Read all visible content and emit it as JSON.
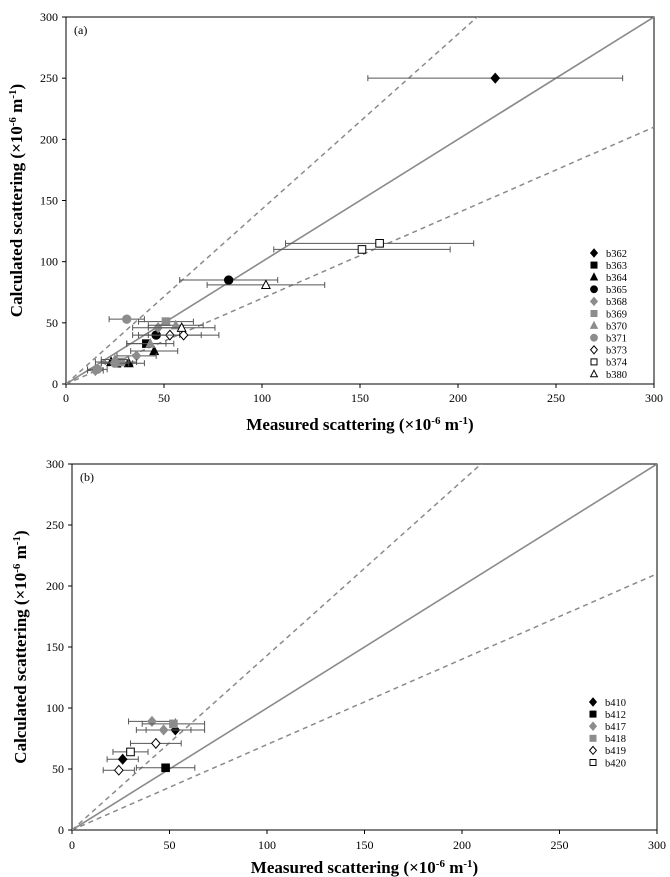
{
  "chart_data": [
    {
      "type": "scatter",
      "panel_label": "(a)",
      "xlabel": "Measured scattering (×10",
      "ylabel": "Calculated scattering (×10",
      "unit_exp": "-6",
      "unit_tail": " m",
      "unit_exp2": "-1",
      "unit_close": ")",
      "xlim": [
        0,
        300
      ],
      "ylim": [
        0,
        300
      ],
      "xticks": [
        "0",
        "50",
        "100",
        "150",
        "200",
        "250",
        "300"
      ],
      "yticks": [
        "0",
        "50",
        "100",
        "150",
        "200",
        "250",
        "300"
      ],
      "grid": false,
      "legend_position": "right",
      "reference_lines": [
        {
          "style": "solid",
          "slope": 1
        },
        {
          "style": "dashed",
          "slope": 1.43
        },
        {
          "style": "dashed",
          "slope": 0.7
        }
      ],
      "series": [
        {
          "name": "b362",
          "marker": "diamond",
          "fill": "#000000",
          "stroke": "#000000",
          "points": [
            {
              "x": 219,
              "y": 250,
              "xerr": 65
            }
          ]
        },
        {
          "name": "b363",
          "marker": "square",
          "fill": "#000000",
          "stroke": "#000000",
          "points": [
            {
              "x": 41,
              "y": 33,
              "xerr": 10
            },
            {
              "x": 26,
              "y": 17,
              "xerr": 8
            }
          ]
        },
        {
          "name": "b364",
          "marker": "triangle",
          "fill": "#000000",
          "stroke": "#000000",
          "points": [
            {
              "x": 45,
              "y": 27,
              "xerr": 12
            },
            {
              "x": 23,
              "y": 18,
              "xerr": 8
            },
            {
              "x": 32,
              "y": 17,
              "xerr": 8
            }
          ]
        },
        {
          "name": "b365",
          "marker": "circle",
          "fill": "#000000",
          "stroke": "#000000",
          "points": [
            {
              "x": 83,
              "y": 85,
              "xerr": 25
            },
            {
              "x": 46,
              "y": 40,
              "xerr": 12
            }
          ]
        },
        {
          "name": "b368",
          "marker": "diamond",
          "fill": "#8c8c8c",
          "stroke": "#8c8c8c",
          "points": [
            {
              "x": 36,
              "y": 23,
              "xerr": 10
            },
            {
              "x": 47,
              "y": 46,
              "xerr": 13
            },
            {
              "x": 15,
              "y": 11,
              "xerr": 4
            }
          ]
        },
        {
          "name": "b369",
          "marker": "square",
          "fill": "#8c8c8c",
          "stroke": "#8c8c8c",
          "points": [
            {
              "x": 51,
              "y": 51,
              "xerr": 14
            },
            {
              "x": 28,
              "y": 18,
              "xerr": 8
            }
          ]
        },
        {
          "name": "b370",
          "marker": "triangle",
          "fill": "#8c8c8c",
          "stroke": "#8c8c8c",
          "points": [
            {
              "x": 56,
              "y": 48,
              "xerr": 14
            },
            {
              "x": 43,
              "y": 33,
              "xerr": 12
            },
            {
              "x": 25,
              "y": 20,
              "xerr": 7
            }
          ]
        },
        {
          "name": "b371",
          "marker": "circle",
          "fill": "#8c8c8c",
          "stroke": "#8c8c8c",
          "points": [
            {
              "x": 31,
              "y": 53,
              "xerr": 9
            },
            {
              "x": 25,
              "y": 17,
              "xerr": 7
            },
            {
              "x": 16,
              "y": 12,
              "xerr": 5
            }
          ]
        },
        {
          "name": "b373",
          "marker": "diamond",
          "fill": "#ffffff",
          "stroke": "#000000",
          "points": [
            {
              "x": 53,
              "y": 40,
              "xerr": 16
            },
            {
              "x": 60,
              "y": 40,
              "xerr": 18
            }
          ]
        },
        {
          "name": "b374",
          "marker": "square",
          "fill": "#ffffff",
          "stroke": "#000000",
          "points": [
            {
              "x": 160,
              "y": 115,
              "xerr": 48
            },
            {
              "x": 151,
              "y": 110,
              "xerr": 45
            }
          ]
        },
        {
          "name": "b380",
          "marker": "triangle",
          "fill": "#ffffff",
          "stroke": "#000000",
          "points": [
            {
              "x": 102,
              "y": 81,
              "xerr": 30
            },
            {
              "x": 59,
              "y": 46,
              "xerr": 17
            }
          ]
        }
      ]
    },
    {
      "type": "scatter",
      "panel_label": "(b)",
      "xlabel": "Measured scattering (×10",
      "ylabel": "Calculated scattering (×10",
      "unit_exp": "-6",
      "unit_tail": " m",
      "unit_exp2": "-1",
      "unit_close": ")",
      "xlim": [
        0,
        300
      ],
      "ylim": [
        0,
        300
      ],
      "xticks": [
        "0",
        "50",
        "100",
        "150",
        "200",
        "250",
        "300"
      ],
      "yticks": [
        "0",
        "50",
        "100",
        "150",
        "200",
        "250",
        "300"
      ],
      "grid": false,
      "legend_position": "right",
      "reference_lines": [
        {
          "style": "solid",
          "slope": 1
        },
        {
          "style": "dashed",
          "slope": 1.43
        },
        {
          "style": "dashed",
          "slope": 0.7
        }
      ],
      "series": [
        {
          "name": "b410",
          "marker": "diamond",
          "fill": "#000000",
          "stroke": "#000000",
          "points": [
            {
              "x": 53,
              "y": 82,
              "xerr": 15
            },
            {
              "x": 26,
              "y": 58,
              "xerr": 8
            }
          ]
        },
        {
          "name": "b412",
          "marker": "square",
          "fill": "#000000",
          "stroke": "#000000",
          "points": [
            {
              "x": 48,
              "y": 51,
              "xerr": 15
            }
          ]
        },
        {
          "name": "b417",
          "marker": "diamond",
          "fill": "#8c8c8c",
          "stroke": "#8c8c8c",
          "points": [
            {
              "x": 41,
              "y": 89,
              "xerr": 12
            },
            {
              "x": 47,
              "y": 82,
              "xerr": 14
            }
          ]
        },
        {
          "name": "b418",
          "marker": "square",
          "fill": "#8c8c8c",
          "stroke": "#8c8c8c",
          "points": [
            {
              "x": 52,
              "y": 87,
              "xerr": 16
            }
          ]
        },
        {
          "name": "b419",
          "marker": "diamond",
          "fill": "#ffffff",
          "stroke": "#000000",
          "points": [
            {
              "x": 43,
              "y": 71,
              "xerr": 13
            },
            {
              "x": 24,
              "y": 49,
              "xerr": 8
            }
          ]
        },
        {
          "name": "b420",
          "marker": "square",
          "fill": "#ffffff",
          "stroke": "#000000",
          "points": [
            {
              "x": 30,
              "y": 64,
              "xerr": 9
            }
          ]
        }
      ]
    }
  ]
}
